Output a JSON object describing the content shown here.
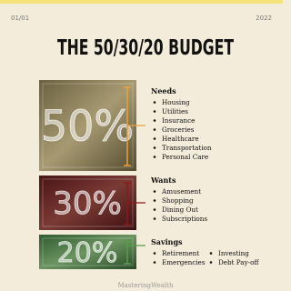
{
  "header": {
    "date": "01/01",
    "year": "2022",
    "title": "THE 50/30/20 BUDGET"
  },
  "sections": [
    {
      "percent": "50%",
      "title": "Needs",
      "items": [
        "Housing",
        "Utilities",
        "Insurance",
        "Groceries",
        "Healthcare",
        "Transportation",
        "Personal Care"
      ]
    },
    {
      "percent": "30%",
      "title": "Wants",
      "items": [
        "Amusement",
        "Shopping",
        "Dining Out",
        "Subscriptions"
      ]
    },
    {
      "percent": "20%",
      "title": "Savings",
      "items": [
        "Retirement",
        "Emergencies",
        "Investing",
        "Debt Pay-off"
      ]
    }
  ],
  "footer": "MasteringWealth"
}
